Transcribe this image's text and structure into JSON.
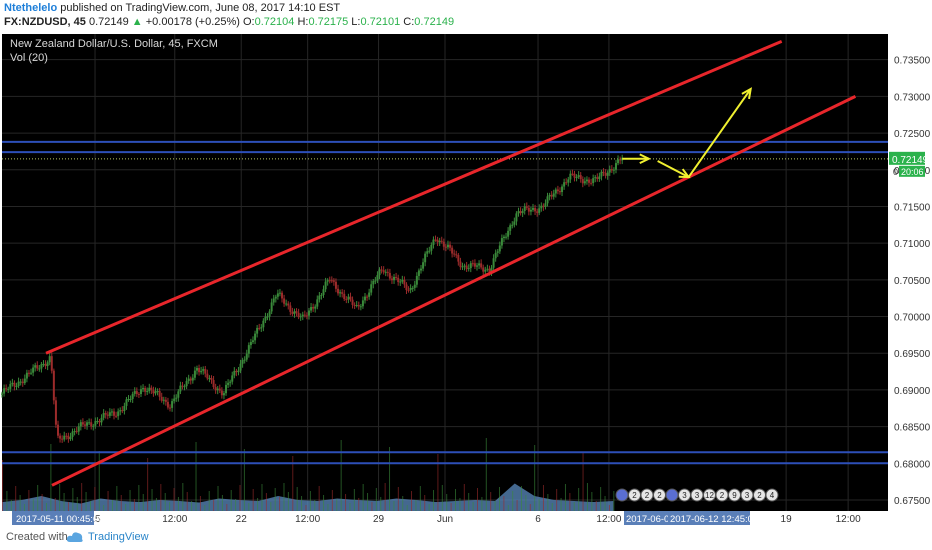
{
  "header": {
    "author": "Ntethelelo",
    "published_text": "published on TradingView.com, June 08, 2017 14:10 EST",
    "symbol": "FX:NZDUSD, 45",
    "last": "0.72149",
    "change_arrow": "▲",
    "change": "+0.00178 (+0.25%)",
    "o_label": "O:",
    "o_value": "0.72104",
    "h_label": "H:",
    "h_value": "0.72175",
    "l_label": "L:",
    "l_value": "0.72101",
    "c_label": "C:",
    "c_value": "0.72149"
  },
  "chart_title": "New Zealand Dollar/U.S. Dollar, 45, FXCM",
  "volume_label": "Vol (20)",
  "footer": {
    "created_with": "Created with",
    "brand": "TradingView"
  },
  "colors": {
    "background": "#000000",
    "grid": "#262626",
    "channel": "#e8262b",
    "horizontal": "#2d4fb8",
    "arrow": "#f0f030",
    "candle_up": "#3a8a3a",
    "candle_down": "#9c2b2b",
    "volume_area": "#5b8bbf",
    "price_tag": "#2bb24c"
  },
  "chart_data": {
    "type": "candlestick",
    "symbol": "NZDUSD",
    "y_axis": {
      "ticks": [
        "0.73500",
        "0.73000",
        "0.72500",
        "0.72000",
        "0.71500",
        "0.71000",
        "0.70500",
        "0.70000",
        "0.69500",
        "0.69000",
        "0.68500",
        "0.68000",
        "0.67500"
      ],
      "range": [
        0.6735,
        0.7385
      ]
    },
    "x_axis": {
      "ticks": [
        "15",
        "12:00",
        "22",
        "12:00",
        "29",
        "Jun",
        "6",
        "12:00",
        "19",
        "12:00"
      ],
      "cursor_start": "2017-05-11 00:45:00",
      "cursor_mid": "2017-06-0",
      "cursor_end": "2017-06-12 12:45:00"
    },
    "last_price": "0.72149",
    "countdown": "20:06",
    "price_scale_extra": "0",
    "price_path": [
      {
        "t": 0.0,
        "p": 0.6895
      },
      {
        "t": 0.04,
        "p": 0.693
      },
      {
        "t": 0.055,
        "p": 0.6945
      },
      {
        "t": 0.062,
        "p": 0.683
      },
      {
        "t": 0.09,
        "p": 0.685
      },
      {
        "t": 0.13,
        "p": 0.687
      },
      {
        "t": 0.16,
        "p": 0.6905
      },
      {
        "t": 0.19,
        "p": 0.688
      },
      {
        "t": 0.22,
        "p": 0.693
      },
      {
        "t": 0.25,
        "p": 0.6895
      },
      {
        "t": 0.28,
        "p": 0.696
      },
      {
        "t": 0.31,
        "p": 0.703
      },
      {
        "t": 0.34,
        "p": 0.6995
      },
      {
        "t": 0.37,
        "p": 0.705
      },
      {
        "t": 0.4,
        "p": 0.701
      },
      {
        "t": 0.43,
        "p": 0.7065
      },
      {
        "t": 0.46,
        "p": 0.7035
      },
      {
        "t": 0.49,
        "p": 0.711
      },
      {
        "t": 0.52,
        "p": 0.707
      },
      {
        "t": 0.55,
        "p": 0.7065
      },
      {
        "t": 0.58,
        "p": 0.714
      },
      {
        "t": 0.61,
        "p": 0.715
      },
      {
        "t": 0.64,
        "p": 0.719
      },
      {
        "t": 0.67,
        "p": 0.7185
      },
      {
        "t": 0.7,
        "p": 0.7215
      }
    ],
    "volume_levels": [
      0.18,
      0.22,
      0.3,
      0.2,
      0.15,
      0.25,
      0.2,
      0.18,
      0.22,
      0.2,
      0.17,
      0.25,
      0.22,
      0.2,
      0.3,
      0.22,
      0.2,
      0.25,
      0.22,
      0.2,
      0.25,
      0.22,
      0.18,
      0.2,
      0.22,
      0.2,
      0.55,
      0.3,
      0.22,
      0.2,
      0.18,
      0.2
    ],
    "channel_upper": [
      {
        "t": 0.0,
        "p": 0.695
      },
      {
        "t": 0.88,
        "p": 0.7375
      }
    ],
    "channel_lower": [
      {
        "t": 0.0,
        "p": 0.677
      },
      {
        "t": 0.97,
        "p": 0.73
      }
    ],
    "horizontal_levels": [
      0.7238,
      0.7224,
      0.6815,
      0.68
    ],
    "arrows": [
      {
        "from": {
          "t": 0.7,
          "p": 0.7215
        },
        "to": {
          "t": 0.73,
          "p": 0.7215
        }
      },
      {
        "from": {
          "t": 0.74,
          "p": 0.7212
        },
        "to": {
          "t": 0.775,
          "p": 0.719
        }
      },
      {
        "from": {
          "t": 0.775,
          "p": 0.719
        },
        "to": {
          "t": 0.845,
          "p": 0.731
        }
      }
    ],
    "event_markers": [
      "flag",
      "2",
      "2",
      "2",
      "flag",
      "3",
      "3",
      "12",
      "2",
      "9",
      "3",
      "2",
      "4"
    ]
  }
}
